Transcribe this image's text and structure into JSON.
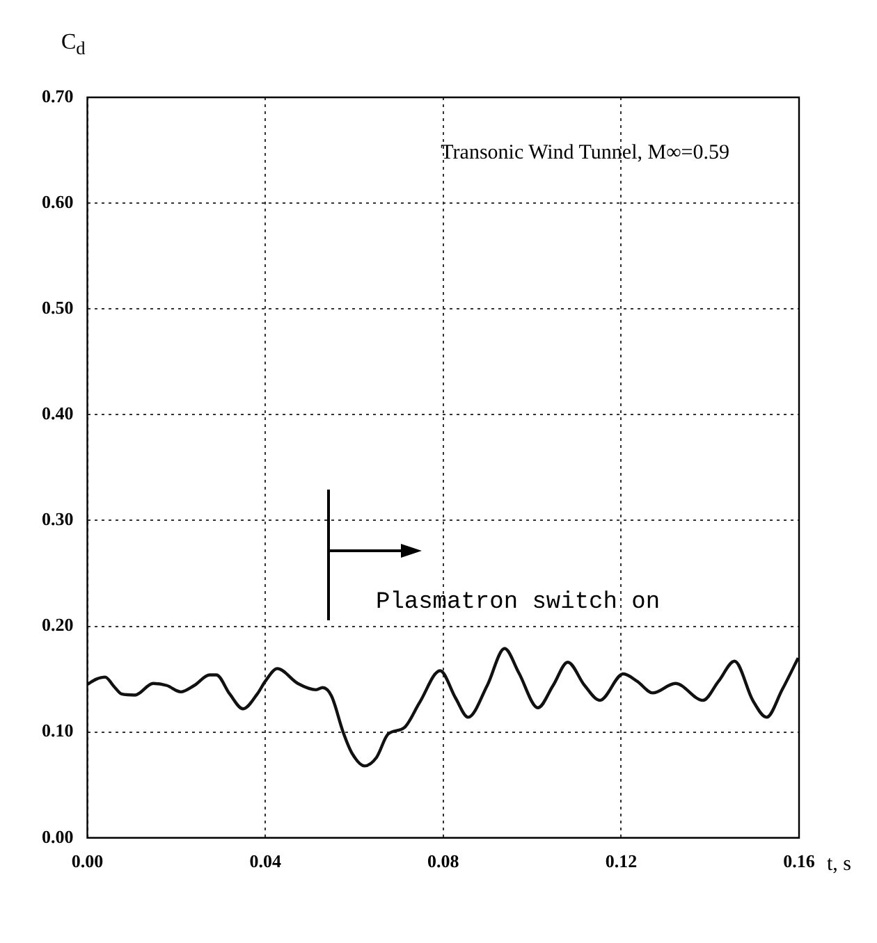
{
  "chart_data": {
    "type": "line",
    "title": "Transonic Wind Tunnel, M∞=0.59",
    "xlabel": "t, s",
    "ylabel": "C$_{d}$",
    "annotations": [
      "Plasmatron switch on"
    ],
    "series": [
      {
        "color": "#111111",
        "x": [
          0,
          0.002,
          0.004,
          0.006,
          0.0077,
          0.0107,
          0.0148,
          0.0179,
          0.021,
          0.024,
          0.0275,
          0.029,
          0.032,
          0.035,
          0.0382,
          0.04,
          0.0427,
          0.0473,
          0.0514,
          0.0529,
          0.0549,
          0.0575,
          0.0595,
          0.0623,
          0.065,
          0.0676,
          0.0712,
          0.0747,
          0.0793,
          0.0828,
          0.0856,
          0.0899,
          0.0938,
          0.097,
          0.1013,
          0.1047,
          0.108,
          0.1118,
          0.1152,
          0.1205,
          0.1236,
          0.1271,
          0.1322,
          0.1384,
          0.1419,
          0.1455,
          0.1496,
          0.1527,
          0.1562,
          0.1598
        ],
        "values": [
          0.145,
          0.15,
          0.152,
          0.143,
          0.136,
          0.135,
          0.146,
          0.144,
          0.138,
          0.144,
          0.154,
          0.154,
          0.136,
          0.122,
          0.136,
          0.148,
          0.16,
          0.146,
          0.14,
          0.142,
          0.134,
          0.1,
          0.08,
          0.068,
          0.076,
          0.098,
          0.104,
          0.128,
          0.158,
          0.132,
          0.114,
          0.144,
          0.179,
          0.156,
          0.123,
          0.144,
          0.166,
          0.144,
          0.13,
          0.155,
          0.148,
          0.137,
          0.146,
          0.13,
          0.148,
          0.167,
          0.13,
          0.114,
          0.14,
          0.17
        ]
      }
    ],
    "xlim": [
      0,
      0.16
    ],
    "xticks": [
      {
        "value": 0,
        "label": "0.00"
      },
      {
        "value": 0.04,
        "label": "0.04"
      },
      {
        "value": 0.08,
        "label": "0.08"
      },
      {
        "value": 0.12,
        "label": "0.12"
      },
      {
        "value": 0.16,
        "label": "0.16"
      }
    ],
    "ylim": [
      0,
      0.7
    ],
    "yticks": [
      {
        "value": 0,
        "label": "0.00"
      },
      {
        "value": 0.1,
        "label": "0.10"
      },
      {
        "value": 0.2,
        "label": "0.20"
      },
      {
        "value": 0.3,
        "label": "0.30"
      },
      {
        "value": 0.4,
        "label": "0.40"
      },
      {
        "value": 0.5,
        "label": "0.50"
      },
      {
        "value": 0.6,
        "label": "0.60"
      },
      {
        "value": 0.7,
        "label": "0.70"
      }
    ],
    "grid": true,
    "legend": false,
    "marker": "none",
    "line_style": "solid"
  }
}
